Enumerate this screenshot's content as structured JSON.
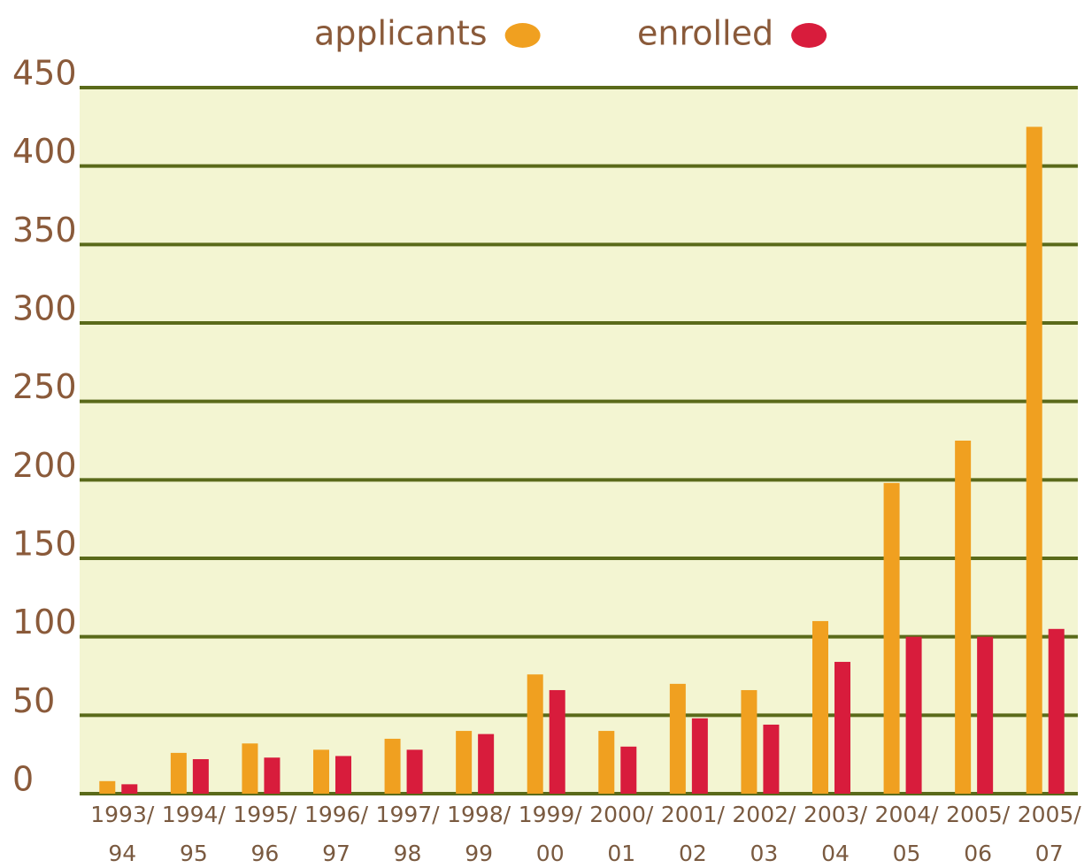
{
  "chart_data": {
    "type": "bar",
    "categories": [
      [
        "1993/",
        "94"
      ],
      [
        "1994/",
        "95"
      ],
      [
        "1995/",
        "96"
      ],
      [
        "1996/",
        "97"
      ],
      [
        "1997/",
        "98"
      ],
      [
        "1998/",
        "99"
      ],
      [
        "1999/",
        "00"
      ],
      [
        "2000/",
        "01"
      ],
      [
        "2001/",
        "02"
      ],
      [
        "2002/",
        "03"
      ],
      [
        "2003/",
        "04"
      ],
      [
        "2004/",
        "05"
      ],
      [
        "2005/",
        "06"
      ],
      [
        "2005/",
        "07"
      ]
    ],
    "series": [
      {
        "name": "applicants",
        "color": "#f0a020",
        "values": [
          8,
          26,
          32,
          28,
          35,
          40,
          76,
          40,
          70,
          66,
          110,
          198,
          225,
          425
        ]
      },
      {
        "name": "enrolled",
        "color": "#d81c3c",
        "values": [
          6,
          22,
          23,
          24,
          28,
          38,
          66,
          30,
          48,
          44,
          84,
          100,
          100,
          105
        ]
      }
    ],
    "ylim": [
      0,
      450
    ],
    "yticks": [
      0,
      50,
      100,
      150,
      200,
      250,
      300,
      350,
      400,
      450
    ],
    "grid": true,
    "legend": "top"
  }
}
